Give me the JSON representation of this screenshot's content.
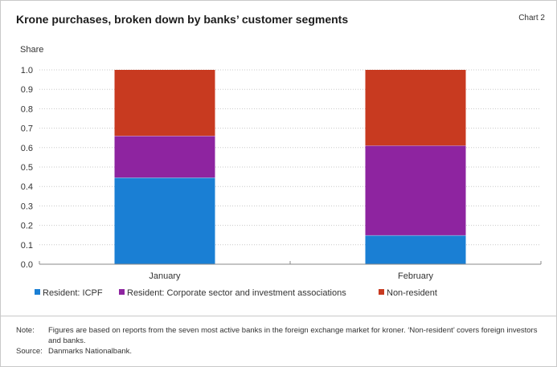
{
  "title": "Krone purchases, broken down by banks’ customer segments",
  "chart_number": "Chart 2",
  "chart_data": {
    "type": "bar",
    "stacked": true,
    "ylabel": "Share",
    "xlabel": "",
    "ylim": [
      0,
      1.0
    ],
    "yticks": [
      "0.0",
      "0.1",
      "0.2",
      "0.3",
      "0.4",
      "0.5",
      "0.6",
      "0.7",
      "0.8",
      "0.9",
      "1.0"
    ],
    "categories": [
      "January",
      "February"
    ],
    "series": [
      {
        "name": "Resident: ICPF",
        "color": "#1a7fd4",
        "values": [
          0.445,
          0.148
        ]
      },
      {
        "name": "Resident: Corporate sector and investment associations",
        "color": "#8e24a0",
        "values": [
          0.215,
          0.462
        ]
      },
      {
        "name": "Non-resident",
        "color": "#c83a20",
        "values": [
          0.34,
          0.39
        ]
      }
    ],
    "legend_position": "bottom"
  },
  "notes": {
    "note_label": "Note:",
    "note_text": "Figures are based on reports from the seven most active banks in the foreign exchange market for kroner. ‘Non-resident’ covers foreign investors and banks.",
    "source_label": "Source:",
    "source_text": "Danmarks Nationalbank."
  }
}
